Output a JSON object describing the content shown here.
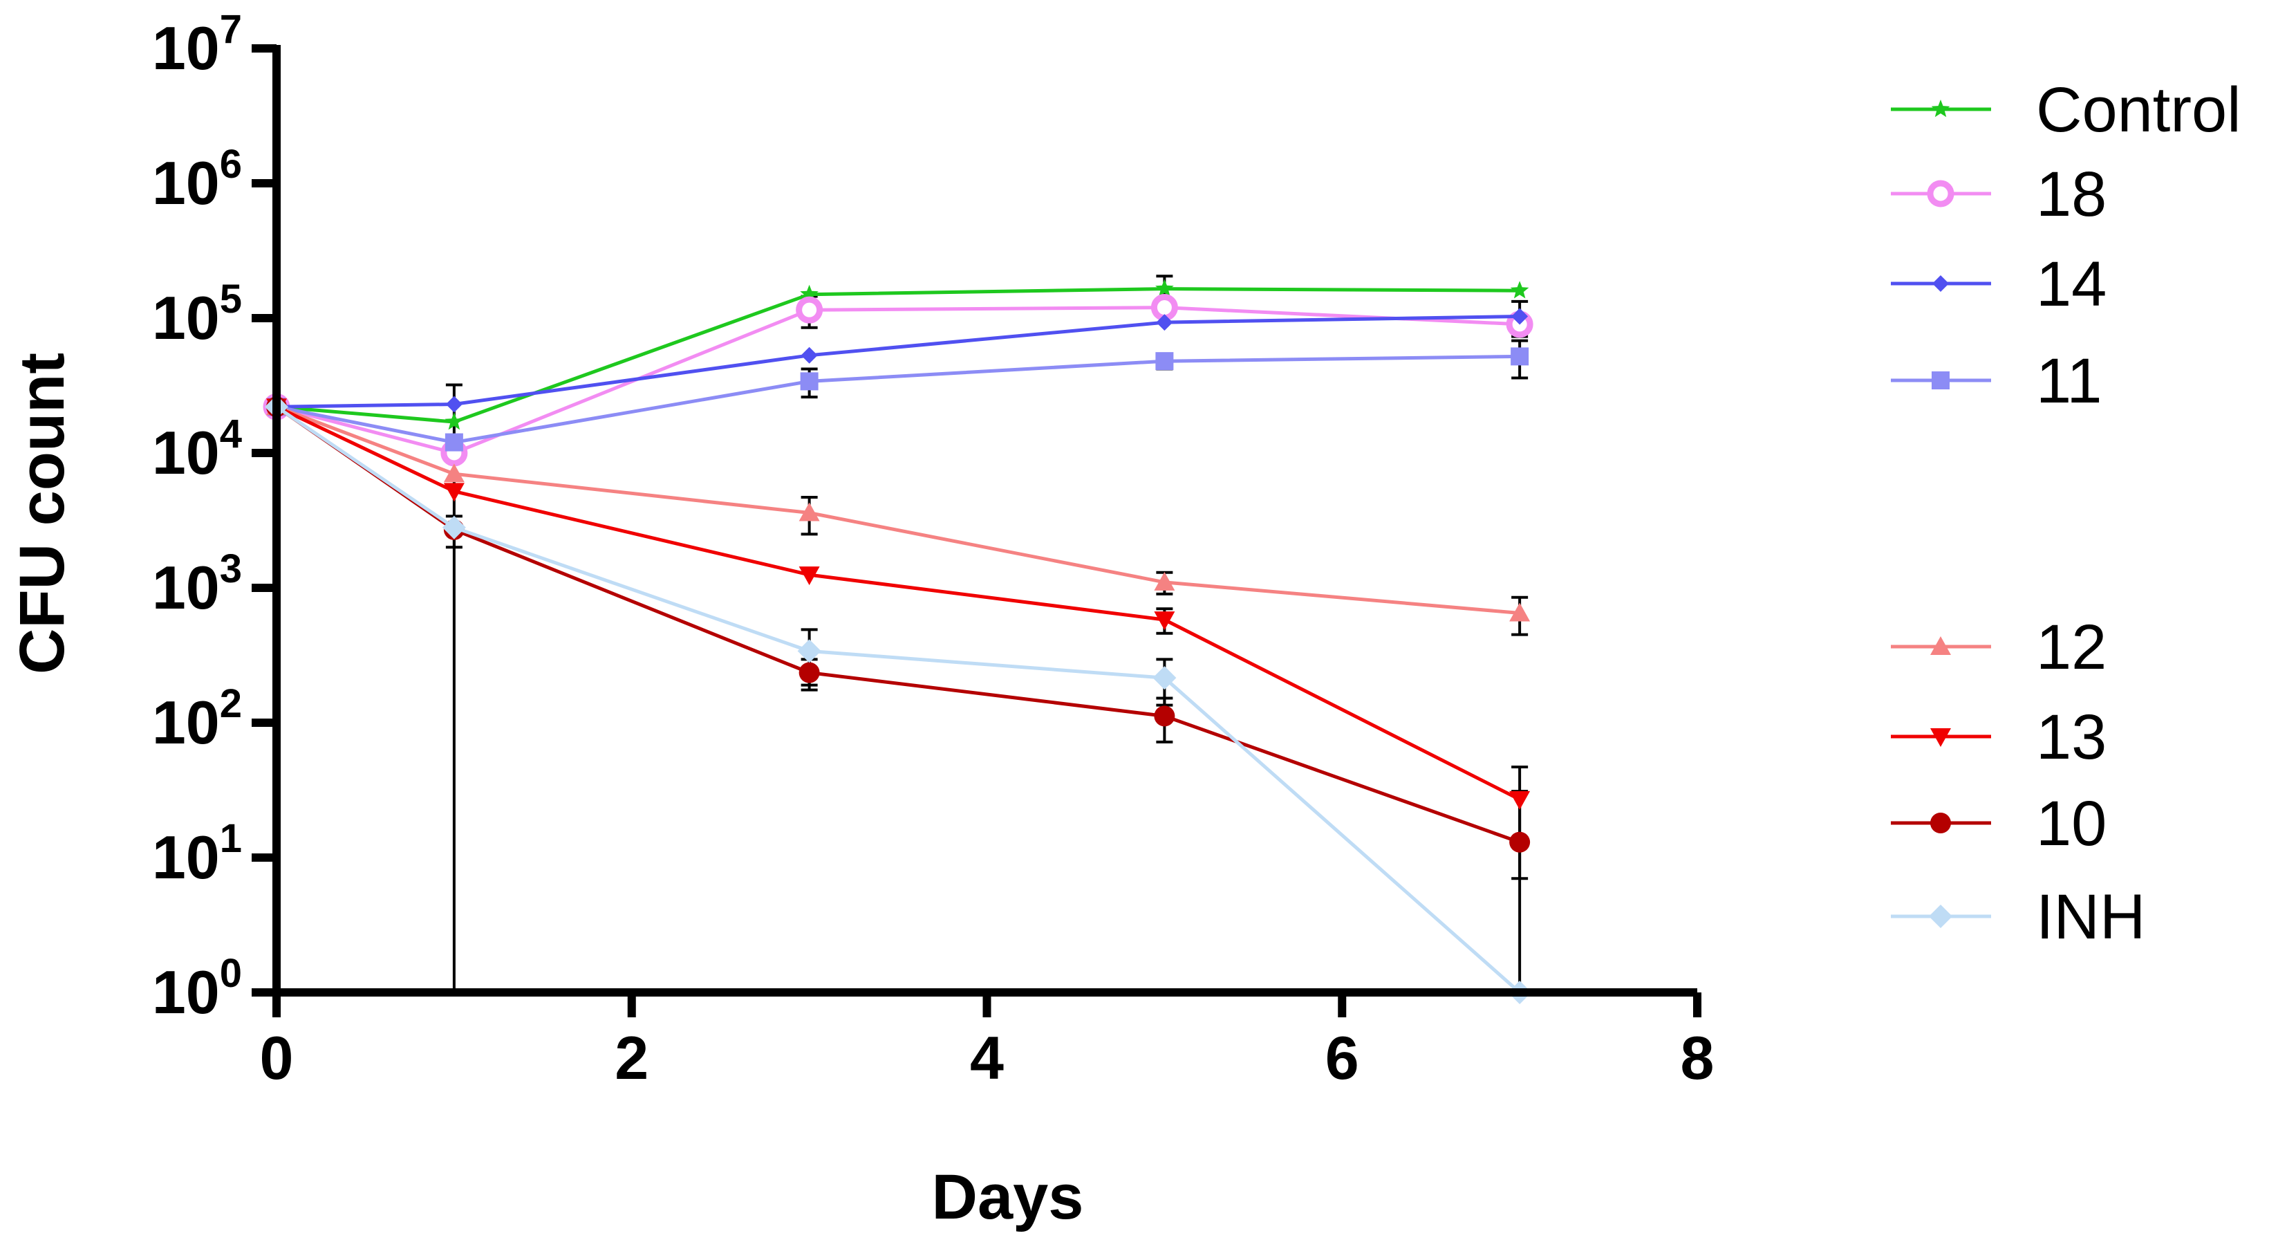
{
  "chart_data": {
    "type": "line",
    "title": "",
    "xlabel": "Days",
    "ylabel": "CFU count",
    "xlim": [
      0,
      8
    ],
    "xticks": [
      0,
      2,
      4,
      6,
      8
    ],
    "ylim": [
      1,
      10000000
    ],
    "yscale": "log",
    "ytick_exponents": [
      0,
      1,
      2,
      3,
      4,
      5,
      6,
      7
    ],
    "ytick_base": "10",
    "legend_position": "right",
    "series": [
      {
        "name": "Control",
        "color": "#1ec81e",
        "marker": "star",
        "x": [
          0,
          1,
          3,
          5,
          7
        ],
        "y": [
          22000,
          17000,
          150000,
          165000,
          160000
        ],
        "err": [
          0,
          0,
          0,
          40000,
          0
        ]
      },
      {
        "name": "18",
        "color": "#f28cf2",
        "marker": "circle-open",
        "x": [
          0,
          1,
          3,
          5,
          7
        ],
        "y": [
          22000,
          10000,
          115000,
          120000,
          90000
        ],
        "err": [
          0,
          0,
          30000,
          0,
          0
        ]
      },
      {
        "name": "14",
        "color": "#5050f0",
        "marker": "diamond",
        "x": [
          0,
          1,
          3,
          5,
          7
        ],
        "y": [
          22000,
          23000,
          53000,
          93000,
          103000
        ],
        "err": [
          0,
          0,
          0,
          0,
          30000
        ]
      },
      {
        "name": "11",
        "color": "#8c8cf5",
        "marker": "square",
        "x": [
          0,
          1,
          3,
          5,
          7
        ],
        "y": [
          22000,
          12000,
          34000,
          48000,
          52000
        ],
        "err": [
          0,
          20000,
          8000,
          6000,
          16000
        ]
      },
      {
        "name": "12",
        "color": "#f58282",
        "marker": "triangle-up",
        "x": [
          0,
          1,
          3,
          5,
          7
        ],
        "y": [
          22000,
          7000,
          3600,
          1100,
          650
        ],
        "err": [
          0,
          0,
          1100,
          200,
          200
        ]
      },
      {
        "name": "13",
        "color": "#f00000",
        "marker": "triangle-down",
        "x": [
          0,
          1,
          3,
          5,
          7
        ],
        "y": [
          22000,
          5200,
          1250,
          580,
          27
        ],
        "err": [
          0,
          0,
          0,
          120,
          20
        ]
      },
      {
        "name": "10",
        "color": "#b40000",
        "marker": "circle",
        "x": [
          0,
          1,
          3,
          5,
          7
        ],
        "y": [
          22000,
          2700,
          235,
          112,
          13
        ],
        "err": [
          0,
          700,
          60,
          40,
          18
        ]
      },
      {
        "name": "INH",
        "color": "#bfdcf5",
        "marker": "diamond-large",
        "x": [
          0,
          1,
          3,
          5,
          7
        ],
        "y": [
          22000,
          2800,
          340,
          215,
          1
        ],
        "err": [
          0,
          0,
          150,
          80,
          0
        ]
      }
    ]
  }
}
